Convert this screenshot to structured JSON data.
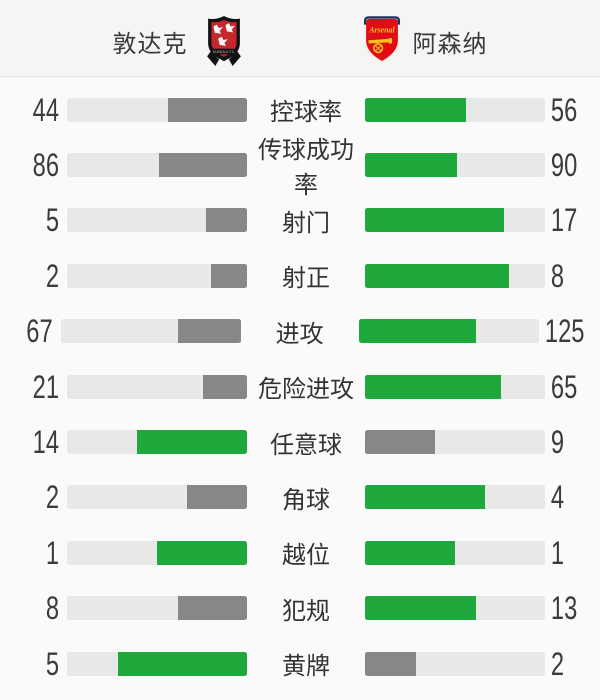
{
  "header": {
    "home": {
      "name": "敦达克",
      "crest_text": "DUNDALK F.C."
    },
    "away": {
      "name": "阿森纳",
      "crest_text": "Arsenal"
    }
  },
  "colors": {
    "leading_bar": "#1fa83c",
    "trailing_bar": "#878787",
    "bar_track": "#e8e8e8",
    "dundalk_black": "#131313",
    "dundalk_red": "#c5272d",
    "arsenal_red": "#e00d17",
    "arsenal_navy": "#17356b",
    "arsenal_gold": "#f7c11e"
  },
  "stats": {
    "rows": [
      {
        "label": "控球率",
        "home": 44,
        "away": 56
      },
      {
        "label": "传球成功率",
        "home": 86,
        "away": 90
      },
      {
        "label": "射门",
        "home": 5,
        "away": 17
      },
      {
        "label": "射正",
        "home": 2,
        "away": 8
      },
      {
        "label": "进攻",
        "home": 67,
        "away": 125
      },
      {
        "label": "危险进攻",
        "home": 21,
        "away": 65
      },
      {
        "label": "任意球",
        "home": 14,
        "away": 9
      },
      {
        "label": "角球",
        "home": 2,
        "away": 4
      },
      {
        "label": "越位",
        "home": 1,
        "away": 1
      },
      {
        "label": "犯规",
        "home": 8,
        "away": 13
      },
      {
        "label": "黄牌",
        "home": 5,
        "away": 2
      }
    ]
  }
}
